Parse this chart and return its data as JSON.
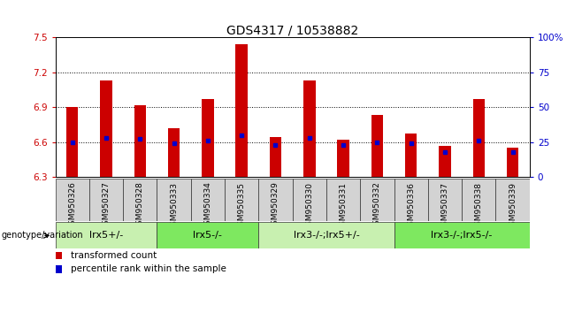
{
  "title": "GDS4317 / 10538882",
  "samples": [
    "GSM950326",
    "GSM950327",
    "GSM950328",
    "GSM950333",
    "GSM950334",
    "GSM950335",
    "GSM950329",
    "GSM950330",
    "GSM950331",
    "GSM950332",
    "GSM950336",
    "GSM950337",
    "GSM950338",
    "GSM950339"
  ],
  "transformed_counts": [
    6.9,
    7.13,
    6.92,
    6.72,
    6.97,
    7.44,
    6.64,
    7.13,
    6.62,
    6.83,
    6.67,
    6.57,
    6.97,
    6.55
  ],
  "percentile_ranks": [
    25,
    28,
    27,
    24,
    26,
    30,
    23,
    28,
    23,
    25,
    24,
    18,
    26,
    18
  ],
  "ylim_left": [
    6.3,
    7.5
  ],
  "ylim_right": [
    0,
    100
  ],
  "yticks_left": [
    6.3,
    6.6,
    6.9,
    7.2,
    7.5
  ],
  "yticks_right": [
    0,
    25,
    50,
    75,
    100
  ],
  "ytick_labels_left": [
    "6.3",
    "6.6",
    "6.9",
    "7.2",
    "7.5"
  ],
  "ytick_labels_right": [
    "0",
    "25",
    "50",
    "75",
    "100%"
  ],
  "bar_color": "#cc0000",
  "dot_color": "#0000cc",
  "bar_bottom": 6.3,
  "groups": [
    {
      "label": "lrx5+/-",
      "start": 0,
      "end": 3,
      "color": "#c8f0b0"
    },
    {
      "label": "lrx5-/-",
      "start": 3,
      "end": 6,
      "color": "#7ee860"
    },
    {
      "label": "lrx3-/-;lrx5+/-",
      "start": 6,
      "end": 10,
      "color": "#c8f0b0"
    },
    {
      "label": "lrx3-/-;lrx5-/-",
      "start": 10,
      "end": 14,
      "color": "#7ee860"
    }
  ],
  "grid_color": "#000000",
  "grid_yticks": [
    6.6,
    6.9,
    7.2
  ],
  "xlabel_area_label": "genotype/variation",
  "legend_red_label": "transformed count",
  "legend_blue_label": "percentile rank within the sample",
  "title_fontsize": 10,
  "tick_fontsize": 7.5,
  "sample_label_fontsize": 6.5,
  "group_label_fontsize": 8
}
